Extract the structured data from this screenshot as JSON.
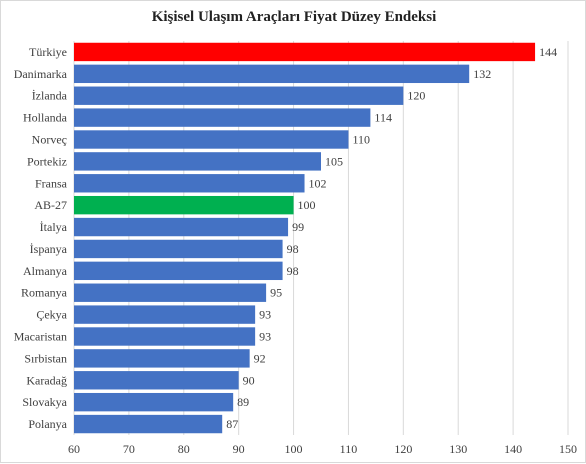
{
  "chart_data": {
    "type": "bar",
    "orientation": "horizontal",
    "title": "Kişisel Ulaşım Araçları Fiyat Düzey Endeksi",
    "categories": [
      "Türkiye",
      "Danimarka",
      "İzlanda",
      "Hollanda",
      "Norveç",
      "Portekiz",
      "Fransa",
      "AB-27",
      "İtalya",
      "İspanya",
      "Almanya",
      "Romanya",
      "Çekya",
      "Macaristan",
      "Sırbistan",
      "Karadağ",
      "Slovakya",
      "Polanya"
    ],
    "values": [
      144,
      132,
      120,
      114,
      110,
      105,
      102,
      100,
      99,
      98,
      98,
      95,
      93,
      93,
      92,
      90,
      89,
      87
    ],
    "xlim": [
      60,
      150
    ],
    "xticks": [
      60,
      70,
      80,
      90,
      100,
      110,
      120,
      130,
      140,
      150
    ],
    "grid": true,
    "data_labels": true,
    "legend": "none",
    "colors": {
      "default": "#4472c4",
      "highlight_turkey": "#ff0000",
      "highlight_eu": "#00b050",
      "grid": "#d9d9d9",
      "text": "#404040"
    },
    "highlights": {
      "Türkiye": "highlight_turkey",
      "AB-27": "highlight_eu"
    }
  }
}
